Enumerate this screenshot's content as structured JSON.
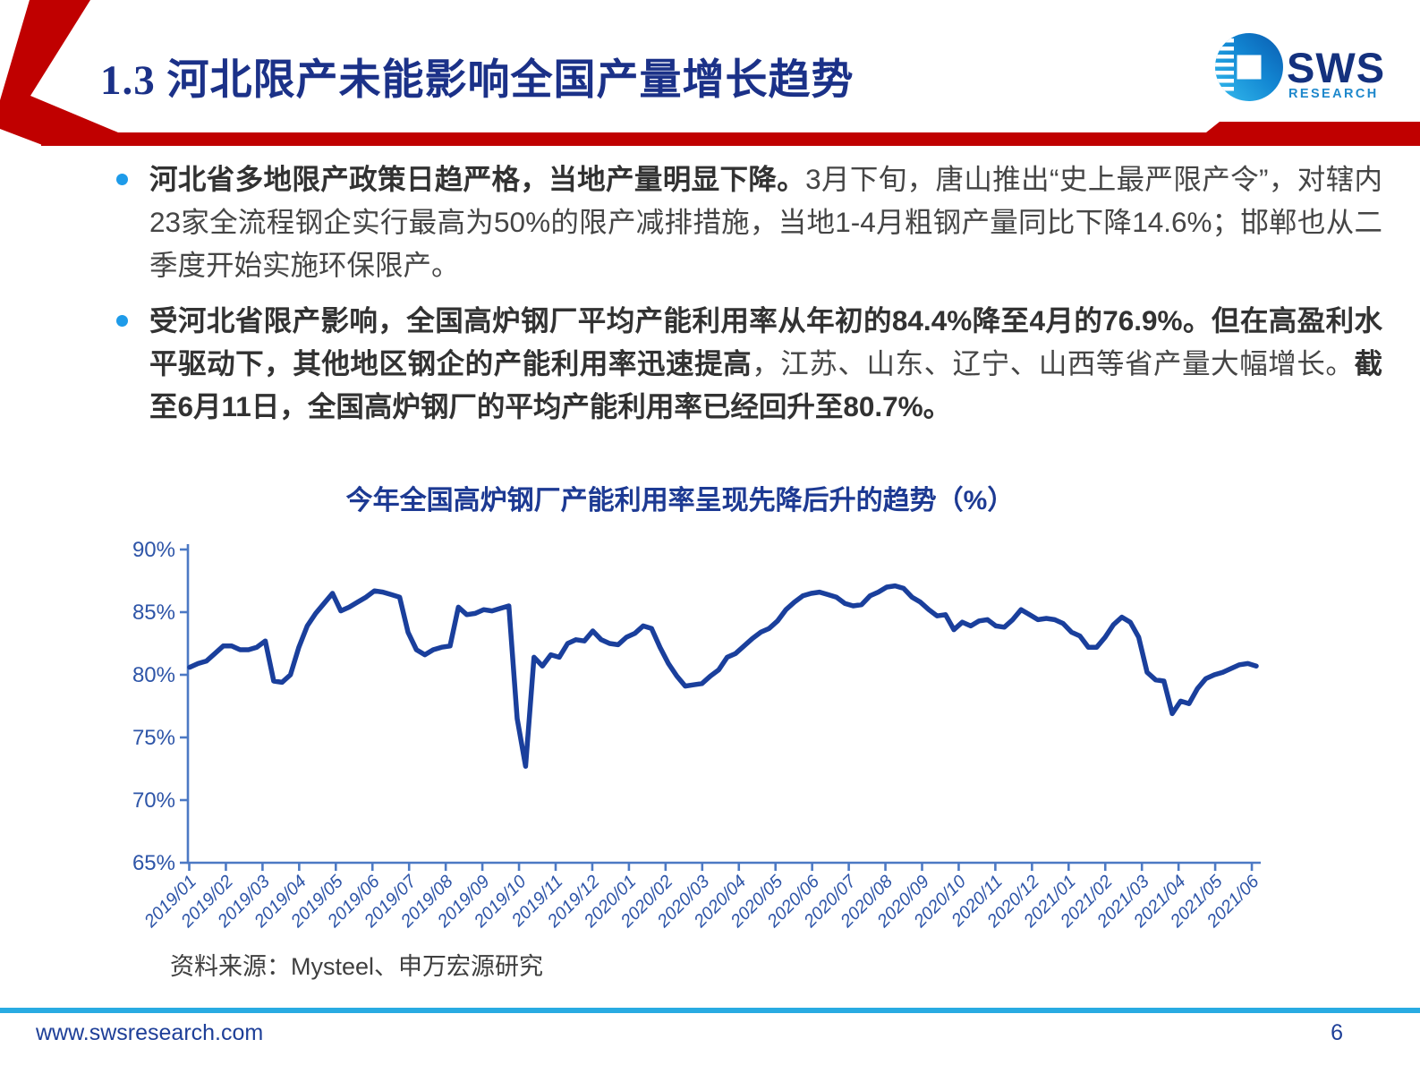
{
  "slide": {
    "title": "1.3 河北限产未能影响全国产量增长趋势",
    "footer_url": "www.swsresearch.com",
    "page_number": "6"
  },
  "logo": {
    "name": "SWS",
    "subtitle": "RESEARCH"
  },
  "bullets": [
    {
      "segments": [
        {
          "text": "河北省多地限产政策日趋严格，当地产量明显下降。",
          "bold": true
        },
        {
          "text": "3月下旬，唐山推出“史上最严限产令”，对辖内23家全流程钢企实行最高为50%的限产减排措施，当地1-4月粗钢产量同比下降14.6%；邯郸也从二季度开始实施环保限产。",
          "bold": false
        }
      ]
    },
    {
      "segments": [
        {
          "text": "受河北省限产影响，全国高炉钢厂平均产能利用率从年初的84.4%降至4月的76.9%。但在高盈利水平驱动下，其他地区钢企的产能利用率迅速提高",
          "bold": true
        },
        {
          "text": "，江苏、山东、辽宁、山西等省产量大幅增长。",
          "bold": false
        },
        {
          "text": "截至6月11日，全国高炉钢厂的平均产能利用率已经回升至80.7%。",
          "bold": true
        }
      ]
    }
  ],
  "chart": {
    "source": "资料来源：Mysteel、申万宏源研究"
  },
  "chart_data": {
    "type": "line",
    "title": "今年全国高炉钢厂产能利用率呈现先降后升的趋势（%）",
    "series_name": "全国高炉钢厂产能利用率(%)",
    "x_frequency": "weekly",
    "x_range": [
      "2019/01",
      "2021/06"
    ],
    "x_tick_labels": [
      "2019/01",
      "2019/02",
      "2019/03",
      "2019/04",
      "2019/05",
      "2019/06",
      "2019/07",
      "2019/08",
      "2019/09",
      "2019/10",
      "2019/11",
      "2019/12",
      "2020/01",
      "2020/02",
      "2020/03",
      "2020/04",
      "2020/05",
      "2020/06",
      "2020/07",
      "2020/08",
      "2020/09",
      "2020/10",
      "2020/11",
      "2020/12",
      "2021/01",
      "2021/02",
      "2021/03",
      "2021/04",
      "2021/05",
      "2021/06"
    ],
    "y_ticks": [
      90,
      85,
      80,
      75,
      70,
      65
    ],
    "ylim": [
      65,
      90
    ],
    "grid": false,
    "legend": "none",
    "values": [
      80.6,
      80.9,
      81.1,
      81.7,
      82.3,
      82.3,
      82.0,
      82.0,
      82.2,
      82.7,
      79.5,
      79.4,
      80.0,
      82.2,
      83.9,
      84.9,
      85.7,
      86.5,
      85.1,
      85.4,
      85.8,
      86.2,
      86.7,
      86.6,
      86.4,
      86.2,
      83.4,
      82.0,
      81.6,
      82.0,
      82.2,
      82.3,
      85.4,
      84.8,
      84.9,
      85.2,
      85.1,
      85.3,
      85.5,
      76.5,
      72.7,
      81.4,
      80.7,
      81.6,
      81.4,
      82.5,
      82.8,
      82.7,
      83.5,
      82.8,
      82.5,
      82.4,
      83.0,
      83.3,
      83.9,
      83.7,
      82.2,
      80.9,
      79.9,
      79.1,
      79.2,
      79.3,
      79.9,
      80.4,
      81.4,
      81.7,
      82.3,
      82.9,
      83.4,
      83.7,
      84.3,
      85.2,
      85.8,
      86.3,
      86.5,
      86.6,
      86.4,
      86.2,
      85.7,
      85.5,
      85.6,
      86.3,
      86.6,
      87.0,
      87.1,
      86.9,
      86.2,
      85.8,
      85.2,
      84.7,
      84.8,
      83.6,
      84.2,
      83.9,
      84.3,
      84.4,
      83.9,
      83.8,
      84.4,
      85.2,
      84.8,
      84.4,
      84.5,
      84.4,
      84.1,
      83.4,
      83.1,
      82.2,
      82.2,
      83.0,
      84.0,
      84.6,
      84.2,
      83.0,
      80.2,
      79.6,
      79.5,
      76.9,
      77.9,
      77.7,
      78.9,
      79.7,
      80.0,
      80.2,
      80.5,
      80.8,
      80.9,
      80.7
    ],
    "colors": {
      "line": "#1a3f9c",
      "axis": "#4c79c4",
      "tick_label": "#2e55a8"
    }
  },
  "theme": {
    "accent_red": "#c00000",
    "title_navy": "#1b3188",
    "bullet_dot_blue": "#1e9be9",
    "footer_cyan": "#29abe2",
    "logo_dark_blue": "#14317e",
    "logo_light_blue": "#1e88cc"
  }
}
